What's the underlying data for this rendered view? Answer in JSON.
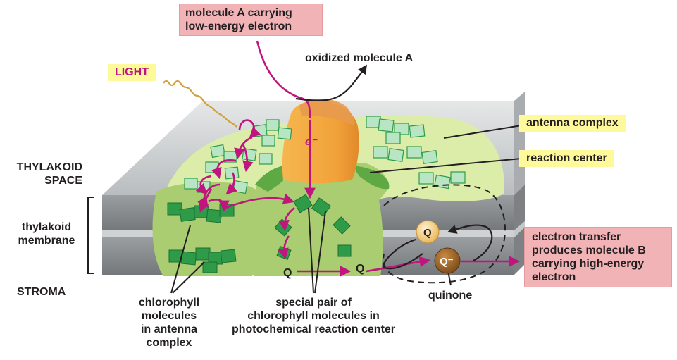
{
  "labels": {
    "molecule_a": [
      "molecule A carrying",
      "low-energy electron"
    ],
    "oxidized": "oxidized molecule A",
    "light": "LIGHT",
    "antenna_complex": "antenna complex",
    "reaction_center": "reaction center",
    "thylakoid_space": [
      "THYLAKOID",
      "SPACE"
    ],
    "thylakoid_membrane": [
      "thylakoid",
      "membrane"
    ],
    "stroma": "STROMA",
    "chlorophyll_antenna": [
      "chlorophyll",
      "molecules",
      "in antenna",
      "complex"
    ],
    "special_pair": [
      "special pair of",
      "chlorophyll molecules in",
      "photochemical reaction center"
    ],
    "quinone": "quinone",
    "electron_transfer": [
      "electron transfer",
      "produces molecule B",
      "carrying high-energy",
      "electron"
    ],
    "electron_symbol": "e⁻",
    "q": "Q",
    "q_minus": "Q⁻"
  },
  "colors": {
    "membrane_gray": "#8c9094",
    "membrane_light": "#c9cccd",
    "antenna_green": "#d9eba2",
    "protein_green": "#a7cc6f",
    "chlorophyll_green": "#2e9b49",
    "reaction_orange": "#f0a73e",
    "arrow_magenta": "#c0147e",
    "light_wave": "#d4a03c",
    "pink_box": "#f2b3b6",
    "yellow_box": "#fef99a"
  }
}
